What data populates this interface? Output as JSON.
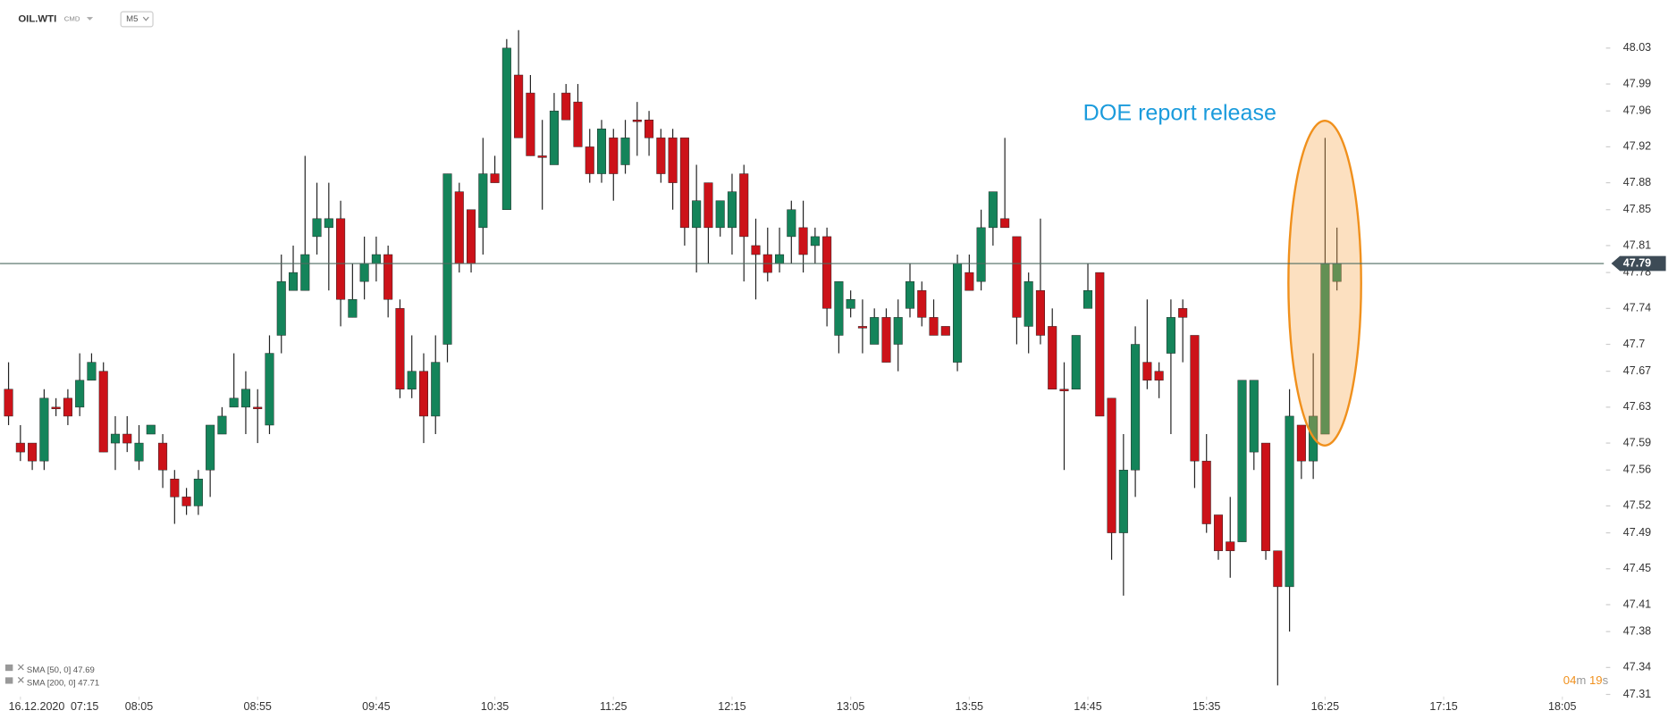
{
  "header": {
    "symbol": "OIL.WTI",
    "market": "CMD",
    "interval": "M5"
  },
  "chart_data": {
    "type": "candlestick",
    "date": "16.12.2020",
    "up_color": "#14845a",
    "down_color": "#cc1219",
    "open": [
      47.65,
      47.59,
      47.59,
      47.57,
      47.63,
      47.64,
      47.63,
      47.66,
      47.67,
      47.59,
      47.6,
      47.57,
      47.6,
      47.59,
      47.55,
      47.53,
      47.52,
      47.56,
      47.6,
      47.63,
      47.63,
      47.63,
      47.61,
      47.71,
      47.76,
      47.76,
      47.82,
      47.83,
      47.84,
      47.73,
      47.77,
      47.79,
      47.8,
      47.74,
      47.65,
      47.67,
      47.62,
      47.7,
      47.87,
      47.85,
      47.83,
      47.89,
      47.85,
      48.0,
      47.98,
      47.91,
      47.9,
      47.98,
      47.97,
      47.92,
      47.89,
      47.93,
      47.9,
      47.95,
      47.95,
      47.93,
      47.93,
      47.93,
      47.83,
      47.88,
      47.83,
      47.83,
      47.89,
      47.81,
      47.8,
      47.79,
      47.82,
      47.83,
      47.81,
      47.82,
      47.71,
      47.74,
      47.72,
      47.7,
      47.73,
      47.7,
      47.74,
      47.76,
      47.73,
      47.72,
      47.68,
      47.78,
      47.77,
      47.83,
      47.84,
      47.82,
      47.72,
      47.76,
      47.72,
      47.65,
      47.65,
      47.74,
      47.78,
      47.64,
      47.49,
      47.56,
      47.68,
      47.67,
      47.69,
      47.74,
      47.71,
      47.57,
      47.51,
      47.48,
      47.48,
      47.58,
      47.59,
      47.47,
      47.43,
      47.61,
      47.57,
      47.6,
      47.77
    ],
    "high": [
      47.68,
      47.61,
      47.59,
      47.65,
      47.64,
      47.65,
      47.69,
      47.69,
      47.68,
      47.62,
      47.62,
      47.61,
      47.61,
      47.6,
      47.56,
      47.54,
      47.56,
      47.61,
      47.63,
      47.69,
      47.67,
      47.65,
      47.71,
      47.8,
      47.81,
      47.91,
      47.88,
      47.88,
      47.86,
      47.79,
      47.82,
      47.82,
      47.81,
      47.75,
      47.71,
      47.69,
      47.71,
      47.89,
      47.88,
      47.85,
      47.93,
      47.91,
      48.04,
      48.05,
      48.0,
      47.95,
      47.98,
      47.99,
      47.99,
      47.94,
      47.95,
      47.94,
      47.95,
      47.97,
      47.96,
      47.94,
      47.94,
      47.93,
      47.9,
      47.88,
      47.86,
      47.89,
      47.9,
      47.84,
      47.83,
      47.83,
      47.86,
      47.86,
      47.83,
      47.83,
      47.77,
      47.76,
      47.75,
      47.74,
      47.74,
      47.75,
      47.79,
      47.77,
      47.75,
      47.72,
      47.8,
      47.8,
      47.85,
      47.87,
      47.93,
      47.82,
      47.78,
      47.84,
      47.74,
      47.68,
      47.71,
      47.79,
      47.78,
      47.64,
      47.6,
      47.72,
      47.75,
      47.68,
      47.75,
      47.75,
      47.71,
      47.6,
      47.51,
      47.53,
      47.66,
      47.66,
      47.59,
      47.47,
      47.65,
      47.61,
      47.69,
      47.93,
      47.83
    ],
    "low": [
      47.61,
      47.57,
      47.56,
      47.56,
      47.62,
      47.61,
      47.62,
      47.66,
      47.58,
      47.56,
      47.58,
      47.56,
      47.6,
      47.54,
      47.5,
      47.51,
      47.51,
      47.53,
      47.6,
      47.63,
      47.6,
      47.59,
      47.6,
      47.69,
      47.76,
      47.76,
      47.8,
      47.76,
      47.72,
      47.73,
      47.75,
      47.77,
      47.73,
      47.64,
      47.64,
      47.59,
      47.6,
      47.68,
      47.78,
      47.78,
      47.8,
      47.88,
      47.85,
      47.93,
      47.91,
      47.85,
      47.9,
      47.95,
      47.92,
      47.88,
      47.88,
      47.86,
      47.89,
      47.91,
      47.91,
      47.88,
      47.85,
      47.81,
      47.78,
      47.79,
      47.82,
      47.8,
      47.77,
      47.75,
      47.77,
      47.78,
      47.79,
      47.78,
      47.79,
      47.72,
      47.69,
      47.73,
      47.69,
      47.7,
      47.68,
      47.67,
      47.73,
      47.72,
      47.71,
      47.71,
      47.67,
      47.76,
      47.76,
      47.81,
      47.83,
      47.7,
      47.69,
      47.7,
      47.65,
      47.56,
      47.65,
      47.74,
      47.62,
      47.46,
      47.42,
      47.53,
      47.65,
      47.64,
      47.6,
      47.68,
      47.54,
      47.49,
      47.46,
      47.44,
      47.48,
      47.56,
      47.46,
      47.32,
      47.38,
      47.55,
      47.55,
      47.6,
      47.76
    ],
    "close": [
      47.62,
      47.58,
      47.57,
      47.64,
      47.63,
      47.62,
      47.66,
      47.68,
      47.58,
      47.6,
      47.59,
      47.59,
      47.61,
      47.56,
      47.53,
      47.52,
      47.55,
      47.61,
      47.62,
      47.64,
      47.65,
      47.63,
      47.69,
      47.77,
      47.78,
      47.8,
      47.84,
      47.84,
      47.75,
      47.75,
      47.79,
      47.8,
      47.75,
      47.65,
      47.67,
      47.62,
      47.68,
      47.89,
      47.79,
      47.79,
      47.89,
      47.88,
      48.03,
      47.93,
      47.91,
      47.91,
      47.96,
      47.95,
      47.92,
      47.89,
      47.94,
      47.89,
      47.93,
      47.95,
      47.93,
      47.89,
      47.88,
      47.83,
      47.86,
      47.83,
      47.86,
      47.87,
      47.82,
      47.8,
      47.78,
      47.8,
      47.85,
      47.8,
      47.82,
      47.74,
      47.77,
      47.75,
      47.72,
      47.73,
      47.68,
      47.73,
      47.77,
      47.73,
      47.71,
      47.71,
      47.79,
      47.76,
      47.83,
      47.87,
      47.83,
      47.73,
      47.77,
      47.71,
      47.65,
      47.65,
      47.71,
      47.76,
      47.62,
      47.49,
      47.56,
      47.7,
      47.66,
      47.66,
      47.73,
      47.73,
      47.57,
      47.5,
      47.47,
      47.47,
      47.66,
      47.66,
      47.47,
      47.43,
      47.62,
      47.57,
      47.62,
      47.79,
      47.79
    ],
    "xlim": [
      -0.72,
      134.5
    ],
    "xticks": [
      {
        "value": 1,
        "label": "07:15"
      },
      {
        "value": 11,
        "label": "08:05"
      },
      {
        "value": 21,
        "label": "08:55"
      },
      {
        "value": 31,
        "label": "09:45"
      },
      {
        "value": 41,
        "label": "10:35"
      },
      {
        "value": 51,
        "label": "11:25"
      },
      {
        "value": 61,
        "label": "12:15"
      },
      {
        "value": 71,
        "label": "13:05"
      },
      {
        "value": 81,
        "label": "13:55"
      },
      {
        "value": 91,
        "label": "14:45"
      },
      {
        "value": 101,
        "label": "15:35"
      },
      {
        "value": 111,
        "label": "16:25"
      },
      {
        "value": 121,
        "label": "17:15"
      },
      {
        "value": 131,
        "label": "18:05"
      }
    ],
    "ylim": [
      47.3,
      48.08
    ],
    "yticks": [
      48.03,
      47.99,
      47.96,
      47.92,
      47.88,
      47.85,
      47.81,
      47.78,
      47.74,
      47.7,
      47.67,
      47.63,
      47.59,
      47.56,
      47.52,
      47.49,
      47.45,
      47.41,
      47.38,
      47.34,
      47.31
    ],
    "current_price": 47.79,
    "current_price_color": "#3d4b56",
    "annotation": "DOE report release",
    "indicators": [
      {
        "name": "SMA [50, 0]",
        "value": 47.69
      },
      {
        "name": "SMA [200, 0]",
        "value": 47.71
      }
    ]
  },
  "timer": {
    "minutes": "04",
    "minutes_unit": "m",
    "seconds": "19",
    "seconds_unit": "s"
  }
}
